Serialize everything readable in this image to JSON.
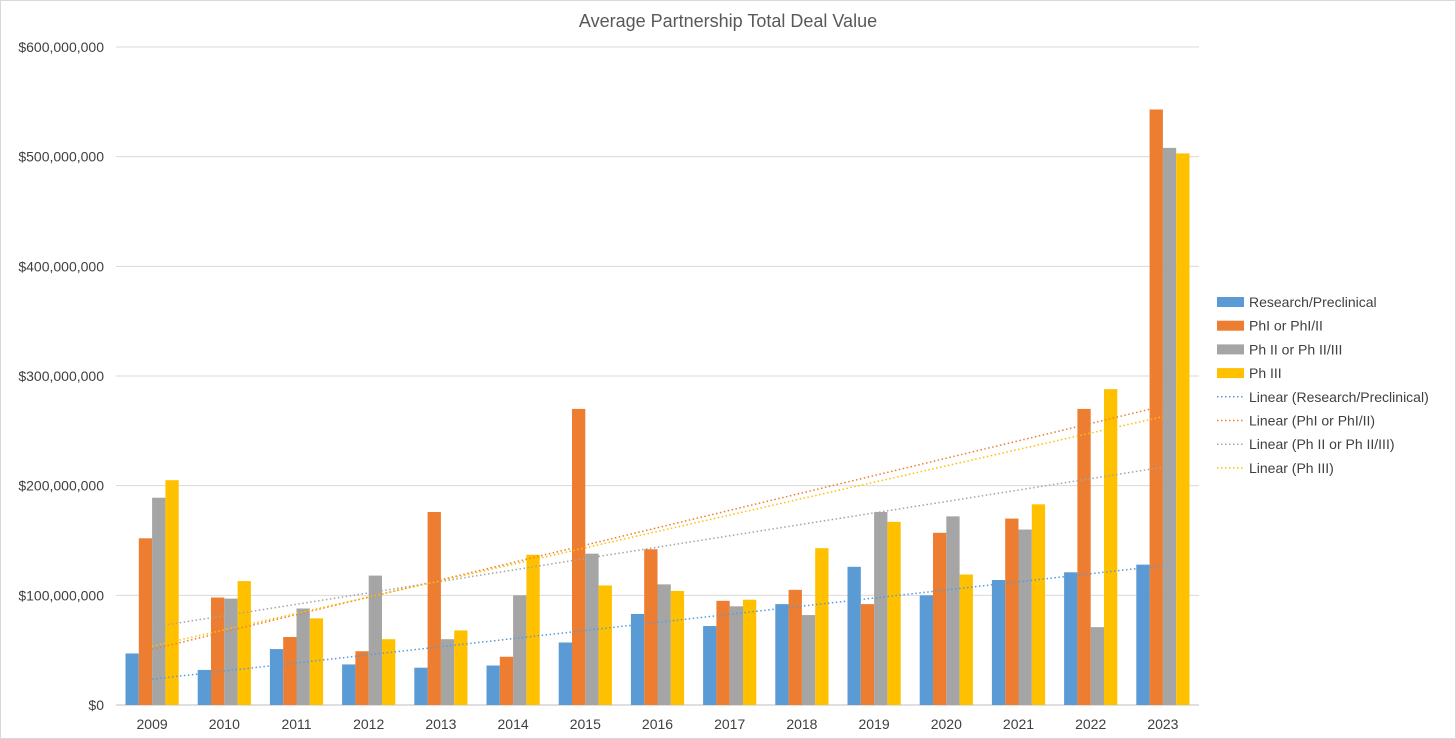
{
  "chart_data": {
    "type": "bar",
    "title": "Average Partnership Total Deal Value",
    "xlabel": "",
    "ylabel": "",
    "ylim": [
      0,
      600000000
    ],
    "y_ticks": [
      0,
      100000000,
      200000000,
      300000000,
      400000000,
      500000000,
      600000000
    ],
    "y_tick_labels": [
      "$0",
      "$100,000,000",
      "$200,000,000",
      "$300,000,000",
      "$400,000,000",
      "$500,000,000",
      "$600,000,000"
    ],
    "grid": true,
    "legend_position": "right",
    "categories": [
      "2009",
      "2010",
      "2011",
      "2012",
      "2013",
      "2014",
      "2015",
      "2016",
      "2017",
      "2018",
      "2019",
      "2020",
      "2021",
      "2022",
      "2023"
    ],
    "series": [
      {
        "name": "Research/Preclinical",
        "color": "#5b9bd5",
        "values": [
          47000000,
          32000000,
          51000000,
          37000000,
          34000000,
          36000000,
          57000000,
          83000000,
          72000000,
          92000000,
          126000000,
          100000000,
          114000000,
          121000000,
          128000000
        ]
      },
      {
        "name": "PhI or PhI/II",
        "color": "#ed7d31",
        "values": [
          152000000,
          98000000,
          62000000,
          49000000,
          176000000,
          44000000,
          270000000,
          142000000,
          95000000,
          105000000,
          92000000,
          157000000,
          170000000,
          270000000,
          543000000
        ]
      },
      {
        "name": "Ph II or Ph II/III",
        "color": "#a5a5a5",
        "values": [
          189000000,
          97000000,
          88000000,
          118000000,
          60000000,
          100000000,
          138000000,
          110000000,
          90000000,
          82000000,
          176000000,
          172000000,
          160000000,
          71000000,
          508000000
        ]
      },
      {
        "name": "Ph III",
        "color": "#ffc000",
        "values": [
          205000000,
          113000000,
          79000000,
          60000000,
          68000000,
          137000000,
          109000000,
          104000000,
          96000000,
          143000000,
          167000000,
          119000000,
          183000000,
          288000000,
          503000000
        ]
      }
    ],
    "trendlines": [
      {
        "name": "Linear (Research/Preclinical)",
        "color": "#5b9bd5",
        "series": "Research/Preclinical"
      },
      {
        "name": "Linear (PhI or PhI/II)",
        "color": "#ed7d31",
        "series": "PhI or PhI/II"
      },
      {
        "name": "Linear (Ph II or Ph II/III)",
        "color": "#a5a5a5",
        "series": "Ph II or Ph II/III"
      },
      {
        "name": "Linear (Ph III)",
        "color": "#ffc000",
        "series": "Ph III"
      }
    ]
  }
}
